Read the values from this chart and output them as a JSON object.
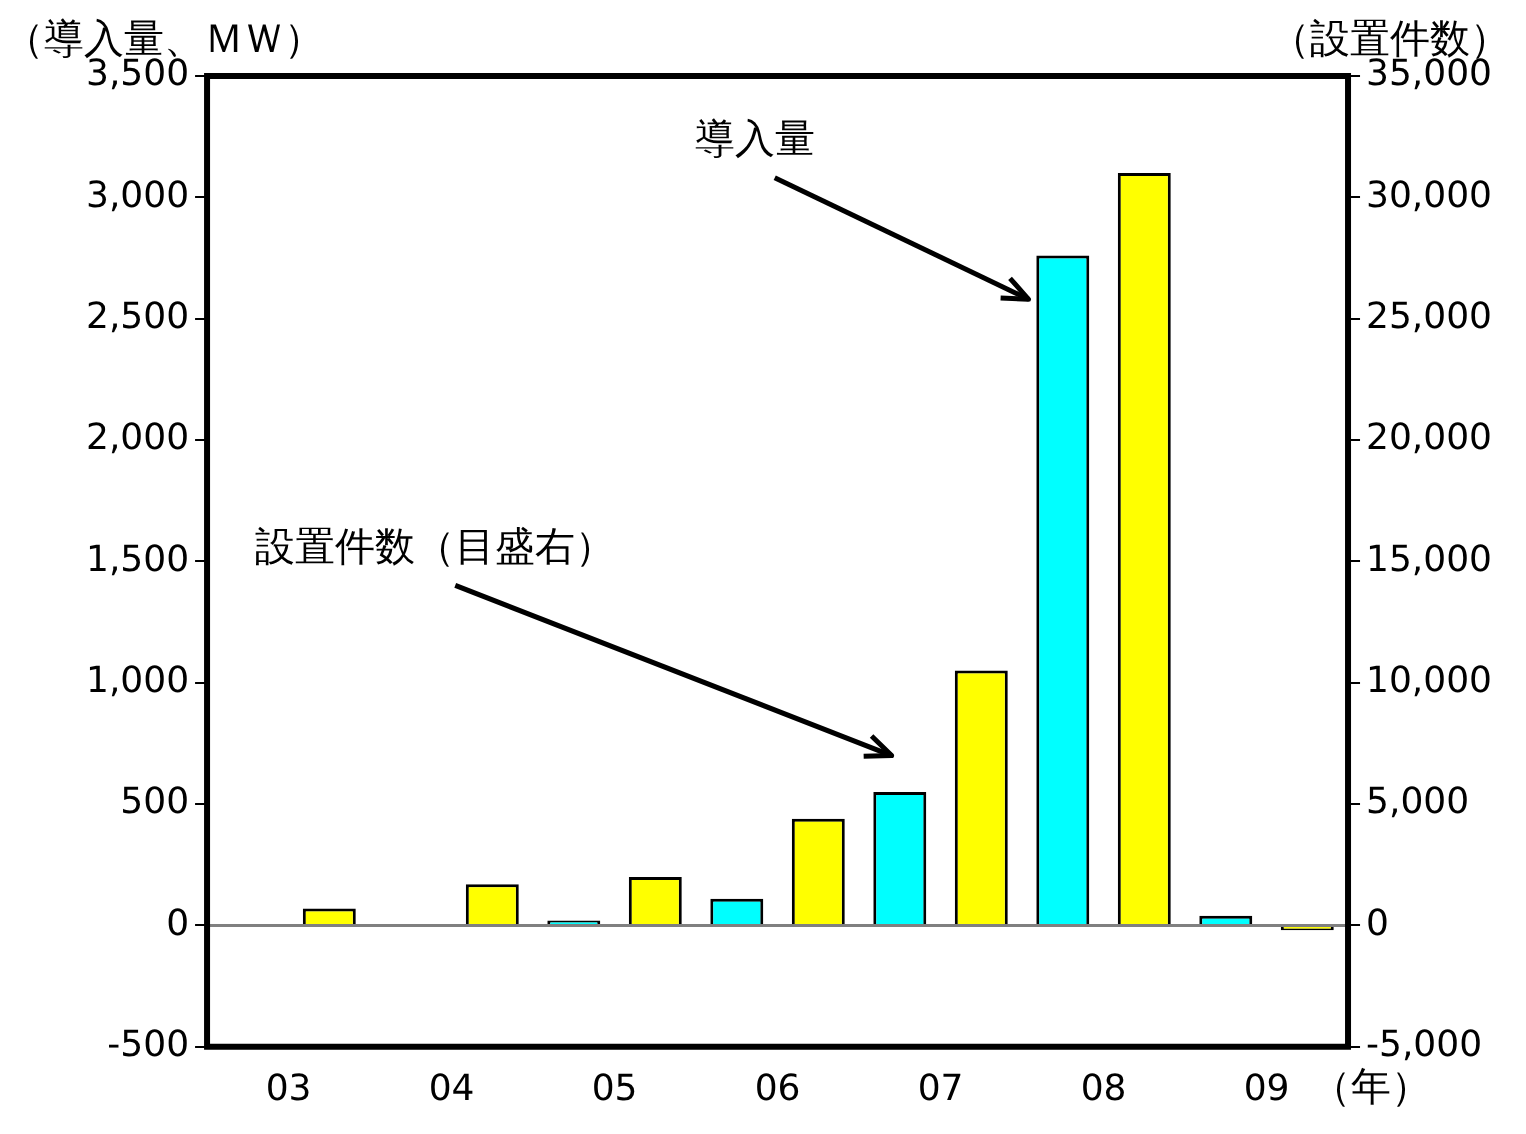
{
  "chart_data": {
    "type": "bar",
    "ylabel": "（導入量、ＭＷ）",
    "y2label": "（設置件数）",
    "xlabel": "（年）",
    "categories": [
      "03",
      "04",
      "05",
      "06",
      "07",
      "08",
      "09"
    ],
    "series": [
      {
        "color": "#00ffff",
        "values": [
          0,
          0,
          20,
          110,
          550,
          2760,
          40
        ]
      },
      {
        "color": "#ffff00",
        "axis": "y2",
        "values": [
          700,
          1700,
          2000,
          4400,
          10500,
          31000,
          -200
        ]
      }
    ],
    "ylim": [
      -500,
      3500
    ],
    "yticks": [
      -500,
      0,
      500,
      {
        "value": 1000,
        "label": "1,000"
      },
      {
        "value": 1500,
        "label": "1,500"
      },
      {
        "value": 2000,
        "label": "2,000"
      },
      {
        "value": 2500,
        "label": "2,500"
      },
      {
        "value": 3000,
        "label": "3,000"
      },
      {
        "value": 3500,
        "label": "3,500"
      }
    ],
    "y2lim": [
      -5000,
      35000
    ],
    "y2ticks": [
      {
        "value": -5000,
        "label": "-5,000"
      },
      0,
      {
        "value": 5000,
        "label": "5,000"
      },
      {
        "value": 10000,
        "label": "10,000"
      },
      {
        "value": 15000,
        "label": "15,000"
      },
      {
        "value": 20000,
        "label": "20,000"
      },
      {
        "value": 25000,
        "label": "25,000"
      },
      {
        "value": 30000,
        "label": "30,000"
      },
      {
        "value": 35000,
        "label": "35,000"
      }
    ],
    "annotations": [
      "導入量",
      "設置件数（目盛右）"
    ],
    "ref_lines": [
      {
        "axis": "y",
        "value": 0,
        "color": "#808080"
      }
    ],
    "grid": false,
    "legend": false
  }
}
